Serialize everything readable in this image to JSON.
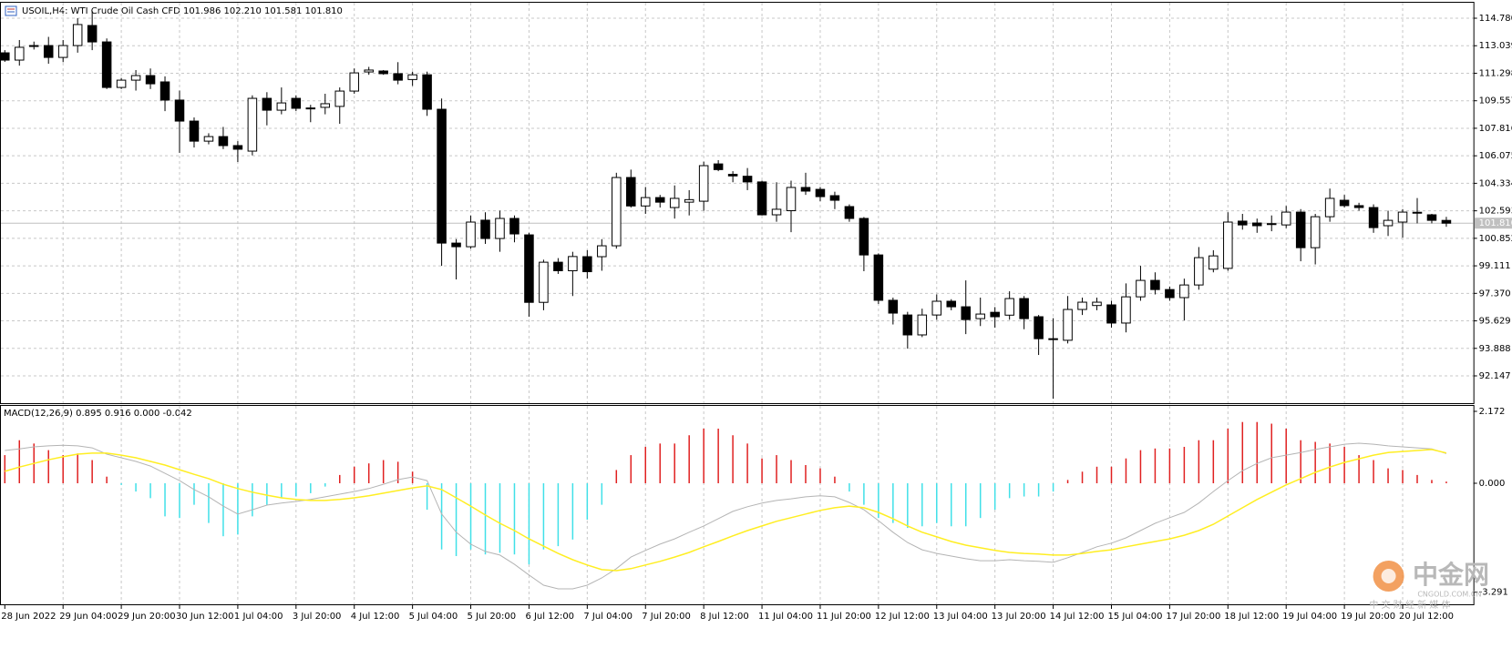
{
  "chart_data": [
    {
      "type": "candlestick",
      "title": "USOIL,H4: WTI Crude Oil Cash CFD 101.986 102.210 101.581 101.810",
      "categories": [
        "28 Jun 2022",
        null,
        null,
        null,
        "29 Jun 04:00",
        null,
        null,
        null,
        "29 Jun 20:00",
        null,
        null,
        null,
        "30 Jun 12:00",
        null,
        null,
        null,
        "1 Jul 04:00",
        null,
        null,
        null,
        "3 Jul 20:00",
        null,
        null,
        null,
        "4 Jul 12:00",
        null,
        null,
        null,
        "5 Jul 04:00",
        null,
        null,
        null,
        "5 Jul 20:00",
        null,
        null,
        null,
        "6 Jul 12:00",
        null,
        null,
        null,
        "7 Jul 04:00",
        null,
        null,
        null,
        "7 Jul 20:00",
        null,
        null,
        null,
        "8 Jul 12:00",
        null,
        null,
        null,
        "11 Jul 04:00",
        null,
        null,
        null,
        "11 Jul 20:00",
        null,
        null,
        null,
        "12 Jul 12:00",
        null,
        null,
        null,
        "13 Jul 04:00",
        null,
        null,
        null,
        "13 Jul 20:00",
        null,
        null,
        null,
        "14 Jul 12:00",
        null,
        null,
        null,
        "15 Jul 04:00",
        null,
        null,
        null,
        "17 Jul 20:00",
        null,
        null,
        null,
        "18 Jul 12:00",
        null,
        null,
        null,
        "19 Jul 04:00",
        null,
        null,
        null,
        "19 Jul 20:00",
        null,
        null,
        null,
        "20 Jul 12:00",
        null,
        null,
        null
      ],
      "open": [
        112.59,
        112.13,
        113.0,
        113.05,
        112.3,
        113.05,
        114.32,
        113.28,
        110.4,
        110.86,
        111.15,
        110.75,
        109.6,
        108.27,
        107.0,
        107.29,
        106.72,
        106.37,
        109.71,
        108.96,
        109.71,
        109.08,
        109.14,
        109.2,
        110.17,
        111.38,
        111.44,
        111.27,
        110.9,
        111.2,
        109.02,
        100.55,
        100.32,
        102.0,
        100.84,
        102.11,
        101.07,
        96.8,
        99.34,
        98.8,
        99.69,
        99.69,
        100.38,
        104.7,
        102.9,
        103.43,
        102.8,
        103.14,
        103.2,
        105.56,
        104.9,
        104.78,
        104.42,
        102.34,
        102.6,
        104.07,
        103.95,
        103.55,
        102.86,
        102.11,
        99.8,
        96.93,
        96.0,
        94.74,
        96.0,
        96.87,
        96.52,
        95.77,
        96.17,
        95.99,
        97.04,
        95.89,
        94.5,
        94.4,
        96.35,
        96.6,
        96.64,
        95.49,
        97.15,
        98.19,
        97.61,
        97.1,
        97.9,
        98.9,
        98.95,
        101.94,
        101.82,
        101.76,
        101.7,
        102.51,
        100.26,
        102.22,
        103.26,
        102.92,
        102.8,
        101.65,
        101.88,
        102.45,
        102.34,
        101.986
      ],
      "high": [
        112.76,
        113.4,
        113.3,
        113.6,
        113.4,
        114.78,
        115.24,
        113.5,
        111.0,
        111.5,
        111.6,
        111.1,
        110.2,
        108.5,
        107.5,
        107.9,
        107.0,
        109.9,
        110.1,
        110.4,
        109.9,
        109.3,
        110.0,
        110.4,
        111.6,
        111.7,
        111.5,
        112.0,
        111.4,
        111.4,
        109.7,
        100.8,
        102.3,
        102.5,
        102.6,
        102.3,
        101.2,
        99.5,
        99.6,
        100.0,
        100.1,
        100.8,
        105.0,
        105.2,
        104.1,
        103.6,
        104.2,
        103.9,
        105.7,
        105.8,
        105.1,
        105.3,
        104.5,
        104.4,
        104.5,
        105.0,
        104.1,
        103.8,
        103.0,
        102.2,
        99.9,
        97.1,
        96.2,
        96.4,
        97.3,
        97.0,
        98.19,
        97.1,
        96.5,
        97.5,
        97.2,
        96.0,
        95.8,
        97.2,
        97.1,
        97.1,
        96.9,
        98.0,
        99.11,
        98.7,
        97.8,
        98.3,
        100.3,
        100.1,
        102.5,
        102.4,
        102.1,
        102.3,
        102.9,
        102.7,
        102.4,
        104.0,
        103.6,
        103.1,
        103.0,
        102.6,
        102.7,
        103.4,
        102.4,
        102.21
      ],
      "low": [
        112.02,
        111.78,
        112.8,
        111.9,
        112.0,
        112.6,
        112.76,
        110.3,
        110.3,
        110.2,
        110.3,
        108.9,
        106.26,
        106.6,
        106.8,
        106.5,
        105.68,
        106.1,
        108.0,
        108.7,
        108.9,
        108.2,
        108.7,
        108.1,
        110.0,
        111.2,
        111.2,
        110.6,
        110.5,
        108.6,
        99.11,
        98.25,
        100.2,
        100.5,
        100.0,
        100.6,
        95.89,
        96.3,
        98.6,
        97.2,
        98.3,
        98.8,
        100.2,
        102.8,
        102.4,
        102.8,
        102.1,
        102.3,
        102.6,
        105.1,
        104.4,
        103.9,
        102.3,
        101.9,
        101.24,
        103.6,
        103.2,
        102.7,
        101.9,
        98.77,
        96.7,
        95.4,
        93.87,
        94.6,
        95.7,
        96.3,
        94.79,
        95.3,
        95.2,
        95.7,
        95.1,
        93.47,
        90.7,
        94.2,
        96.0,
        96.3,
        95.2,
        94.9,
        96.9,
        97.3,
        96.9,
        95.66,
        97.6,
        98.7,
        98.8,
        101.4,
        101.2,
        101.3,
        101.5,
        99.4,
        99.2,
        101.9,
        102.8,
        102.6,
        101.2,
        101.0,
        100.9,
        101.8,
        101.8,
        101.581
      ],
      "close": [
        112.13,
        112.94,
        113.05,
        112.3,
        113.05,
        114.38,
        113.28,
        110.4,
        110.86,
        111.15,
        110.63,
        109.6,
        108.27,
        107.0,
        107.29,
        106.72,
        106.49,
        109.71,
        108.96,
        109.42,
        109.08,
        109.1,
        109.37,
        110.17,
        111.32,
        111.5,
        111.27,
        110.86,
        111.2,
        109.02,
        100.55,
        100.32,
        101.88,
        100.84,
        102.11,
        101.13,
        96.8,
        99.34,
        98.8,
        99.7,
        98.74,
        100.38,
        104.7,
        102.9,
        103.43,
        103.14,
        103.38,
        103.3,
        105.45,
        105.2,
        104.8,
        104.42,
        102.34,
        102.69,
        104.07,
        103.84,
        103.49,
        103.26,
        102.11,
        99.8,
        96.93,
        96.12,
        94.74,
        96.0,
        96.87,
        96.52,
        95.71,
        96.06,
        95.89,
        97.04,
        95.77,
        94.5,
        94.45,
        96.35,
        96.81,
        96.81,
        95.49,
        97.15,
        98.19,
        97.61,
        97.1,
        97.9,
        99.63,
        99.74,
        101.88,
        101.7,
        101.65,
        101.78,
        102.51,
        100.26,
        102.22,
        103.38,
        102.92,
        102.8,
        101.53,
        101.99,
        102.51,
        102.5,
        101.99,
        101.81
      ],
      "up_color": "#ffffff",
      "down_color": "#000000",
      "ylim": [
        90.42,
        115.76
      ],
      "yticks": [
        {
          "value": 114.78,
          "label": "114.780"
        },
        113.039,
        111.298,
        109.557,
        107.816,
        106.075,
        104.334,
        102.593,
        100.852,
        99.111,
        {
          "value": 97.37,
          "label": "97.370"
        },
        95.629,
        93.888,
        92.147
      ],
      "last_price": {
        "value": 101.81,
        "label": "101.810"
      },
      "grid": true
    },
    {
      "type": "macd",
      "title": "MACD(12,26,9) 0.895 0.916 0.000 -0.042",
      "histogram": {
        "up_color": "#e02020",
        "down_color": "#40e0e8",
        "values": [
          0.85,
          1.3,
          1.2,
          1.0,
          0.85,
          0.9,
          0.7,
          0.2,
          -0.05,
          -0.25,
          -0.45,
          -1.0,
          -1.05,
          -0.65,
          -1.2,
          -1.6,
          -1.55,
          -1.0,
          -0.65,
          -0.45,
          -0.4,
          -0.3,
          -0.1,
          0.25,
          0.5,
          0.6,
          0.7,
          0.65,
          0.35,
          -0.8,
          -2.0,
          -2.2,
          -2.0,
          -2.15,
          -2.1,
          -2.15,
          -2.45,
          -2.0,
          -1.9,
          -1.7,
          -1.1,
          -0.65,
          0.4,
          0.85,
          1.1,
          1.2,
          1.2,
          1.45,
          1.65,
          1.65,
          1.45,
          1.2,
          0.75,
          0.85,
          0.7,
          0.55,
          0.45,
          0.2,
          -0.25,
          -0.65,
          -1.05,
          -1.2,
          -1.35,
          -1.3,
          -1.2,
          -1.3,
          -1.3,
          -1.05,
          -0.8,
          -0.45,
          -0.4,
          -0.4,
          -0.25,
          0.1,
          0.35,
          0.5,
          0.5,
          0.75,
          1.0,
          1.05,
          1.05,
          1.1,
          1.3,
          1.3,
          1.65,
          1.85,
          1.85,
          1.8,
          1.65,
          1.3,
          1.25,
          1.2,
          1.1,
          0.85,
          0.7,
          0.45,
          0.4,
          0.25,
          0.1,
          0.05
        ]
      },
      "series": [
        {
          "color": "#b4b4b4",
          "values": [
            0.99,
            1.04,
            1.1,
            1.13,
            1.15,
            1.13,
            1.07,
            0.88,
            0.77,
            0.66,
            0.52,
            0.3,
            0.08,
            -0.19,
            -0.41,
            -0.69,
            -0.93,
            -0.8,
            -0.66,
            -0.6,
            -0.55,
            -0.49,
            -0.41,
            -0.33,
            -0.25,
            -0.16,
            -0.03,
            0.11,
            0.19,
            0.08,
            -0.93,
            -1.48,
            -1.84,
            -2.06,
            -2.17,
            -2.45,
            -2.77,
            -3.08,
            -3.19,
            -3.19,
            -3.08,
            -2.86,
            -2.58,
            -2.23,
            -2.03,
            -1.84,
            -1.68,
            -1.48,
            -1.29,
            -1.07,
            -0.85,
            -0.71,
            -0.6,
            -0.52,
            -0.47,
            -0.41,
            -0.38,
            -0.41,
            -0.58,
            -0.8,
            -1.13,
            -1.48,
            -1.79,
            -2.01,
            -2.12,
            -2.2,
            -2.28,
            -2.34,
            -2.34,
            -2.31,
            -2.34,
            -2.36,
            -2.39,
            -2.25,
            -2.09,
            -1.92,
            -1.81,
            -1.65,
            -1.43,
            -1.21,
            -1.04,
            -0.88,
            -0.6,
            -0.25,
            0.08,
            0.38,
            0.6,
            0.77,
            0.85,
            0.93,
            1.02,
            1.1,
            1.18,
            1.21,
            1.18,
            1.13,
            1.1,
            1.07,
            1.04,
            0.895
          ]
        },
        {
          "color": "#ffee22",
          "values": [
            0.36,
            0.49,
            0.6,
            0.71,
            0.8,
            0.88,
            0.91,
            0.91,
            0.85,
            0.77,
            0.66,
            0.55,
            0.41,
            0.27,
            0.14,
            -0.03,
            -0.16,
            -0.27,
            -0.36,
            -0.44,
            -0.49,
            -0.52,
            -0.52,
            -0.49,
            -0.44,
            -0.38,
            -0.3,
            -0.22,
            -0.14,
            -0.08,
            -0.19,
            -0.44,
            -0.69,
            -0.96,
            -1.21,
            -1.43,
            -1.68,
            -1.9,
            -2.12,
            -2.31,
            -2.47,
            -2.61,
            -2.64,
            -2.58,
            -2.47,
            -2.36,
            -2.23,
            -2.09,
            -1.92,
            -1.76,
            -1.59,
            -1.43,
            -1.29,
            -1.15,
            -1.04,
            -0.93,
            -0.82,
            -0.74,
            -0.69,
            -0.74,
            -0.88,
            -1.07,
            -1.29,
            -1.48,
            -1.62,
            -1.76,
            -1.87,
            -1.95,
            -2.03,
            -2.09,
            -2.12,
            -2.14,
            -2.17,
            -2.17,
            -2.12,
            -2.06,
            -2.01,
            -1.92,
            -1.84,
            -1.76,
            -1.68,
            -1.57,
            -1.43,
            -1.24,
            -0.99,
            -0.74,
            -0.49,
            -0.27,
            -0.05,
            0.14,
            0.33,
            0.49,
            0.63,
            0.74,
            0.85,
            0.93,
            0.96,
            0.99,
            1.02,
            0.916
          ]
        }
      ],
      "ylim": [
        -3.629,
        2.364
      ],
      "yticks": [
        2.172,
        {
          "value": 0,
          "label": "0.000"
        },
        -3.291
      ]
    }
  ],
  "watermark": {
    "logo": "中金网",
    "site": "CNGOLD.COM.CN",
    "slogan": "中 文 财 经 新 媒 体"
  }
}
